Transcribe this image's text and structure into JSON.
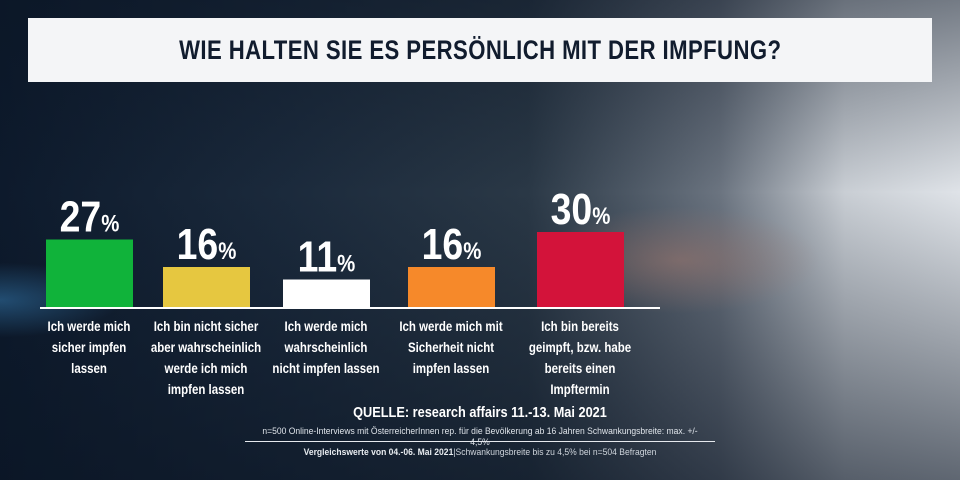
{
  "title": "WIE HALTEN SIE ES PERSÖNLICH MIT DER IMPFUNG?",
  "chart_data": {
    "type": "bar",
    "title": "WIE HALTEN SIE ES PERSÖNLICH MIT DER IMPFUNG?",
    "categories": [
      "Ich werde mich sicher impfen lassen",
      "Ich bin nicht sicher aber wahrscheinlich werde ich mich impfen lassen",
      "Ich werde mich wahrscheinlich nicht impfen lassen",
      "Ich werde mich mit Sicherheit nicht impfen lassen",
      "Ich bin bereits geimpft, bzw. habe bereits einen Impftermin"
    ],
    "values": [
      27,
      16,
      11,
      16,
      30
    ],
    "value_labels": [
      "27",
      "16",
      "11",
      "16",
      "30"
    ],
    "unit": "%",
    "colors": [
      "#10b33a",
      "#e6c740",
      "#ffffff",
      "#f6892a",
      "#d3133a"
    ]
  },
  "footer": {
    "source": "QUELLE: research affairs 11.-13. Mai 2021",
    "method": "n=500 Online-Interviews mit ÖsterreicherInnen rep. für die Bevölkerung ab 16 Jahren  Schwankungsbreite: max. +/- 4,5%",
    "compare_bold": "Vergleichswerte von  04.-06. Mai 2021",
    "compare_rest": "Schwankungsbreite bis zu 4,5% bei n=504 Befragten"
  }
}
